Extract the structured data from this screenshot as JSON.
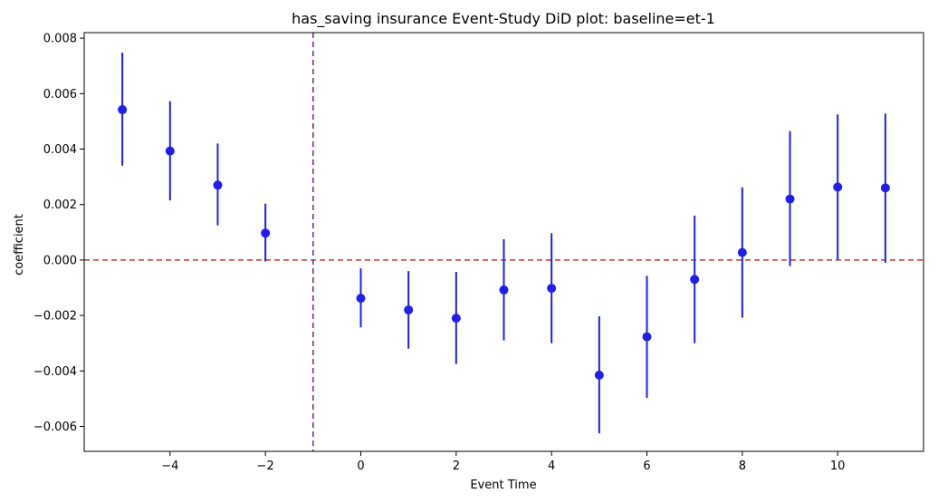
{
  "chart_data": {
    "type": "scatter",
    "title": "has_saving insurance Event-Study DiD plot: baseline=et-1",
    "xlabel": "Event Time",
    "ylabel": "coefficient",
    "xlim": [
      -5.8,
      11.8
    ],
    "ylim": [
      -0.0069,
      0.0082
    ],
    "xticks": [
      -4,
      -2,
      0,
      2,
      4,
      6,
      8,
      10
    ],
    "xtick_labels": [
      "−4",
      "−2",
      "0",
      "2",
      "4",
      "6",
      "8",
      "10"
    ],
    "yticks": [
      -0.006,
      -0.004,
      -0.002,
      0.0,
      0.002,
      0.004,
      0.006,
      0.008
    ],
    "ytick_labels": [
      "−0.006",
      "−0.004",
      "−0.002",
      "0.000",
      "0.002",
      "0.004",
      "0.006",
      "0.008"
    ],
    "grid": false,
    "legend": "none",
    "point_color": "#1f1fe8",
    "ref_hline": {
      "y": 0.0,
      "color": "#c0392b",
      "style": "dashed"
    },
    "ref_vline": {
      "x": -1,
      "color": "#7b2d8e",
      "style": "dashed"
    },
    "points": [
      {
        "x": -5,
        "y": 0.00542,
        "lo": 0.0034,
        "hi": 0.00748
      },
      {
        "x": -4,
        "y": 0.00393,
        "lo": 0.00215,
        "hi": 0.00573
      },
      {
        "x": -3,
        "y": 0.0027,
        "lo": 0.00125,
        "hi": 0.0042
      },
      {
        "x": -2,
        "y": 0.00097,
        "lo": -5e-05,
        "hi": 0.00203
      },
      {
        "x": 0,
        "y": -0.00138,
        "lo": -0.00243,
        "hi": -0.0003
      },
      {
        "x": 1,
        "y": -0.0018,
        "lo": -0.0032,
        "hi": -0.0004
      },
      {
        "x": 2,
        "y": -0.0021,
        "lo": -0.00375,
        "hi": -0.00043
      },
      {
        "x": 3,
        "y": -0.00108,
        "lo": -0.0029,
        "hi": 0.00075
      },
      {
        "x": 4,
        "y": -0.00102,
        "lo": -0.003,
        "hi": 0.00097
      },
      {
        "x": 5,
        "y": -0.00415,
        "lo": -0.00625,
        "hi": -0.00203
      },
      {
        "x": 6,
        "y": -0.00277,
        "lo": -0.00497,
        "hi": -0.00057
      },
      {
        "x": 7,
        "y": -0.0007,
        "lo": -0.003,
        "hi": 0.0016
      },
      {
        "x": 8,
        "y": 0.00027,
        "lo": -0.00208,
        "hi": 0.00262
      },
      {
        "x": 9,
        "y": 0.0022,
        "lo": -0.00022,
        "hi": 0.00465
      },
      {
        "x": 10,
        "y": 0.00263,
        "lo": 0.0,
        "hi": 0.00525
      },
      {
        "x": 11,
        "y": 0.0026,
        "lo": -0.0001,
        "hi": 0.00528
      }
    ]
  }
}
